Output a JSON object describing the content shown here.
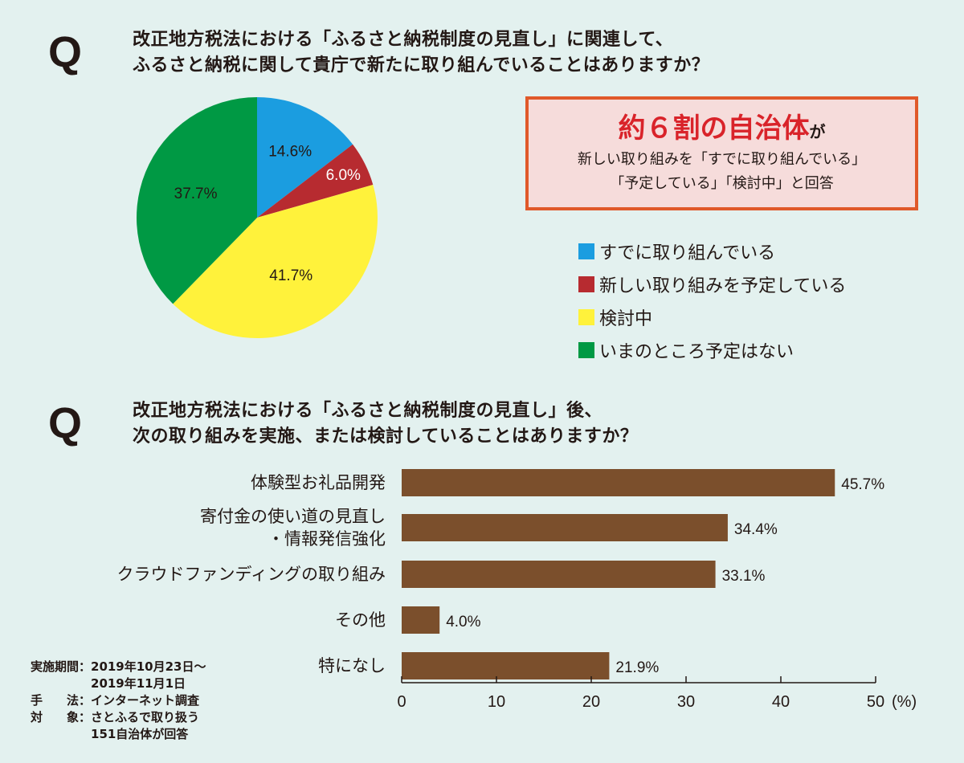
{
  "q_mark": "Q",
  "question1": [
    "改正地方税法における「ふるさと納税制度の見直し」に関連して、",
    "ふるさと納税に関して貴庁で新たに取り組んでいることはありますか？"
  ],
  "callout": {
    "highlight": "約６割の自治体",
    "suffix": "が",
    "line1": "新しい取り組みを「すでに取り組んでいる」",
    "line2": "「予定している」「検討中」と回答"
  },
  "question2": [
    "改正地方税法における「ふるさと納税制度の見直し」後、",
    "次の取り組みを実施、または検討していることはありますか？"
  ],
  "survey_note": [
    "実施期間：2019年10月23日～",
    "　　　　　2019年11月1日",
    "手　　法：インターネット調査",
    "対　　象：さとふるで取り扱う",
    "　　　　　151自治体が回答"
  ],
  "chart_data": [
    {
      "type": "pie",
      "slices": [
        {
          "name": "すでに取り組んでいる",
          "value": 14.6,
          "label": "14.6%",
          "color": "#1b9de0"
        },
        {
          "name": "新しい取り組みを予定している",
          "value": 6.0,
          "label": "6.0%",
          "color": "#b72b30"
        },
        {
          "name": "検討中",
          "value": 41.7,
          "label": "41.7%",
          "color": "#fff23b"
        },
        {
          "name": "いまのところ予定はない",
          "value": 37.7,
          "label": "37.7%",
          "color": "#009944"
        }
      ],
      "legend": "right"
    },
    {
      "type": "bar",
      "orientation": "horizontal",
      "categories": [
        [
          "体験型お礼品開発"
        ],
        [
          "寄付金の使い道の見直し",
          "・情報発信強化"
        ],
        [
          "クラウドファンディングの取り組み"
        ],
        [
          "その他"
        ],
        [
          "特になし"
        ]
      ],
      "values": [
        45.7,
        34.4,
        33.1,
        4.0,
        21.9
      ],
      "data_labels": [
        "45.7%",
        "34.4%",
        "33.1%",
        "4.0%",
        "21.9%"
      ],
      "xlim": [
        0,
        50
      ],
      "xticks": [
        "0",
        "10",
        "20",
        "30",
        "40",
        "50"
      ],
      "xunit": "(%)",
      "color": "#7b4f2c"
    }
  ]
}
